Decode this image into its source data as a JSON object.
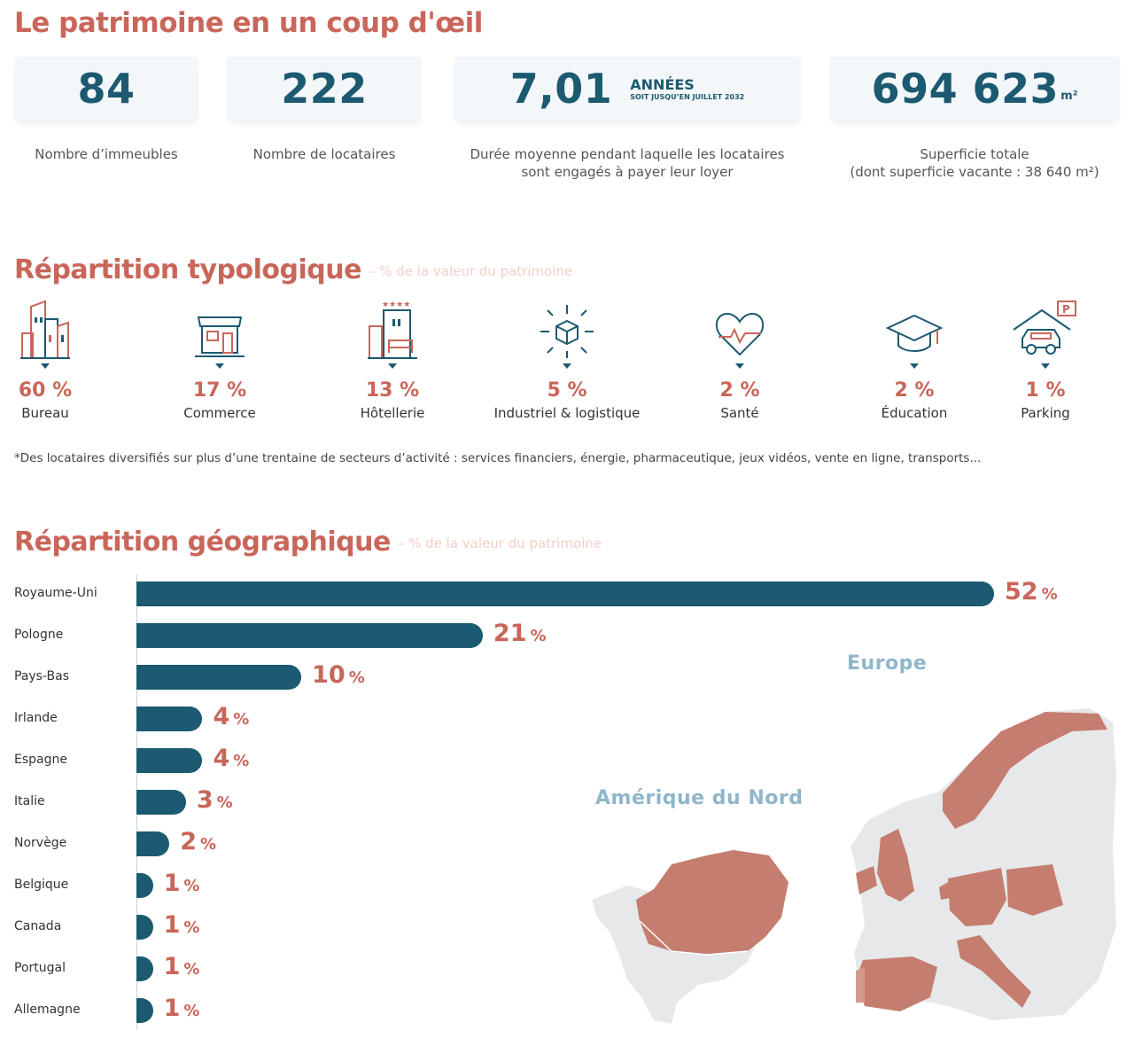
{
  "header": {
    "title": "Le patrimoine en un coup d'œil"
  },
  "stats": [
    {
      "value": "84",
      "label": "Nombre d’immeubles"
    },
    {
      "value": "222",
      "label": "Nombre de locataires"
    },
    {
      "value": "7,01",
      "unit_line1": "ANNÉES",
      "unit_line2": "SOIT JUSQU’EN JUILLET 2032",
      "label_line1": "Durée moyenne pendant laquelle les locataires",
      "label_line2": "sont engagés à payer leur loyer"
    },
    {
      "value": "694 623",
      "unit": "m²",
      "label_line1": "Superficie totale",
      "label_line2": "(dont superficie vacante : 38 640 m²)"
    }
  ],
  "typology": {
    "title": "Répartition typologique",
    "subtitle": "– % de la valeur du patrimoine",
    "items": [
      {
        "pct": "60 %",
        "name": "Bureau",
        "icon": "office-building-icon"
      },
      {
        "pct": "17 %",
        "name": "Commerce",
        "icon": "storefront-icon"
      },
      {
        "pct": "13 %",
        "name": "Hôtellerie",
        "icon": "hotel-icon"
      },
      {
        "pct": "5 %",
        "name": "Industriel & logistique",
        "icon": "logistics-box-icon"
      },
      {
        "pct": "2 %",
        "name": "Santé",
        "icon": "heart-pulse-icon"
      },
      {
        "pct": "2 %",
        "name": "Éducation",
        "icon": "graduation-cap-icon"
      },
      {
        "pct": "1 %",
        "name": "Parking",
        "icon": "parking-car-icon"
      }
    ],
    "footnote": "*Des locataires diversifiés sur plus d’une trentaine de secteurs d’activité : services financiers, énergie, pharmaceutique, jeux vidéos, vente en ligne, transports..."
  },
  "geography": {
    "title": "Répartition géographique",
    "subtitle": "– % de la valeur du patrimoine",
    "regions": {
      "europe": "Europe",
      "north_america": "Amérique du Nord"
    }
  },
  "chart_data": {
    "type": "bar",
    "orientation": "horizontal",
    "title": "Répartition géographique",
    "subtitle": "– % de la valeur du patrimoine",
    "categories": [
      "Royaume-Uni",
      "Pologne",
      "Pays-Bas",
      "Irlande",
      "Espagne",
      "Italie",
      "Norvège",
      "Belgique",
      "Canada",
      "Portugal",
      "Allemagne"
    ],
    "values": [
      52,
      21,
      10,
      4,
      4,
      3,
      2,
      1,
      1,
      1,
      1
    ],
    "value_suffix": "%",
    "colors": {
      "bar": "#1b5a70",
      "label": "#c9665a",
      "map_highlight": "#c47d6f",
      "map_base": "#e6e8ea"
    }
  }
}
